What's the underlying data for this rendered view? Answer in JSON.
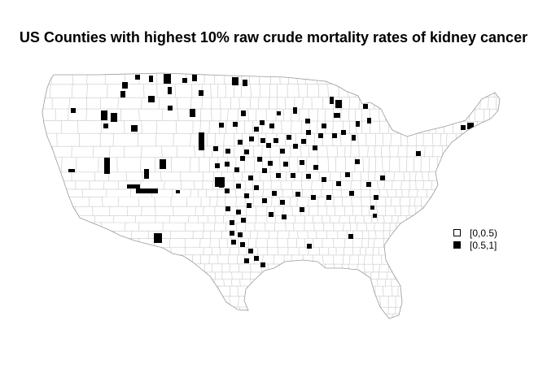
{
  "title": "US Counties with highest 10% raw crude mortality rates of kidney cancer",
  "legend": {
    "items": [
      {
        "label": "[0,0.5)",
        "color": "#ffffff"
      },
      {
        "label": "[0.5,1]",
        "color": "#000000"
      }
    ]
  },
  "colors": {
    "county_border": "#c8c8c8",
    "outline": "#9a9a9a",
    "low_fill": "#ffffff",
    "high_fill": "#000000"
  }
}
